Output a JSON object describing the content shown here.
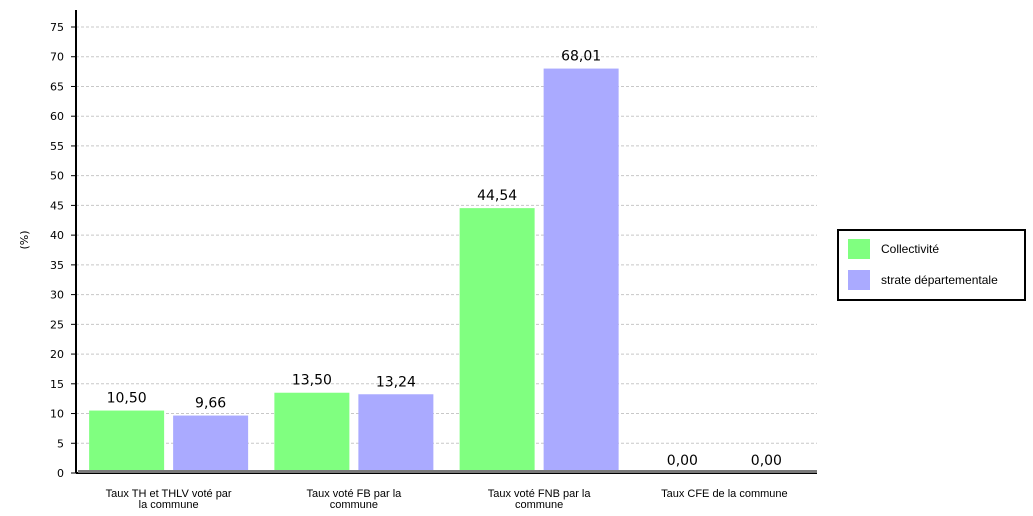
{
  "chart_data": {
    "type": "bar",
    "ylabel": "(%)",
    "ylim": [
      0,
      75
    ],
    "ytick_step": 5,
    "yticks": [
      "0",
      "5",
      "10",
      "15",
      "20",
      "25",
      "30",
      "35",
      "40",
      "45",
      "50",
      "55",
      "60",
      "65",
      "70",
      "75"
    ],
    "grid": true,
    "legend_position": "right",
    "categories": [
      [
        "Taux TH et THLV voté par",
        "la commune"
      ],
      [
        "Taux voté FB par la",
        "commune"
      ],
      [
        "Taux voté FNB par la",
        "commune"
      ],
      [
        "Taux CFE de la commune"
      ]
    ],
    "series": [
      {
        "name": "Collectivité",
        "color": "#80ff80",
        "values": [
          10.5,
          13.5,
          44.54,
          0.0
        ],
        "labels": [
          "10,50",
          "13,50",
          "44,54",
          "0,00"
        ]
      },
      {
        "name": "strate départementale",
        "color": "#aaaaff",
        "values": [
          9.66,
          13.24,
          68.01,
          0.0
        ],
        "labels": [
          "9,66",
          "13,24",
          "68,01",
          "0,00"
        ]
      }
    ]
  }
}
